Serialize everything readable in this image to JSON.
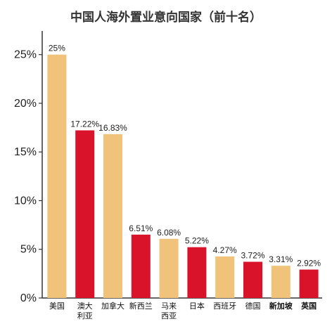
{
  "chart_data": {
    "type": "bar",
    "title": "中国人海外置业意向国家（前十名）",
    "xlabel": "",
    "ylabel": "",
    "ylim": [
      0,
      27
    ],
    "yticks": [
      "0%",
      "5%",
      "10%",
      "15%",
      "20%",
      "25%"
    ],
    "ytick_values": [
      0,
      5,
      10,
      15,
      20,
      25
    ],
    "categories": [
      [
        "美国"
      ],
      [
        "澳大",
        "利亚"
      ],
      [
        "加拿大"
      ],
      [
        "新西兰"
      ],
      [
        "马来",
        "西亚"
      ],
      [
        "日本"
      ],
      [
        "西班牙"
      ],
      [
        "德国"
      ],
      [
        "新加坡"
      ],
      [
        "英国"
      ]
    ],
    "values": [
      25,
      17.22,
      16.83,
      6.51,
      6.08,
      5.22,
      4.27,
      3.72,
      3.31,
      2.92
    ],
    "value_labels": [
      "25%",
      "17.22%",
      "16.83%",
      "6.51%",
      "6.08%",
      "5.22%",
      "4.27%",
      "3.72%",
      "3.31%",
      "2.92%"
    ],
    "bar_colors": [
      "#F0C27A",
      "#D9142A",
      "#F0C27A",
      "#D9142A",
      "#F0C27A",
      "#D9142A",
      "#F0C27A",
      "#D9142A",
      "#F0C27A",
      "#D9142A"
    ],
    "bold_categories": [
      false,
      false,
      false,
      false,
      false,
      false,
      false,
      false,
      true,
      true
    ],
    "axis_color": "#333333",
    "grid": false
  }
}
